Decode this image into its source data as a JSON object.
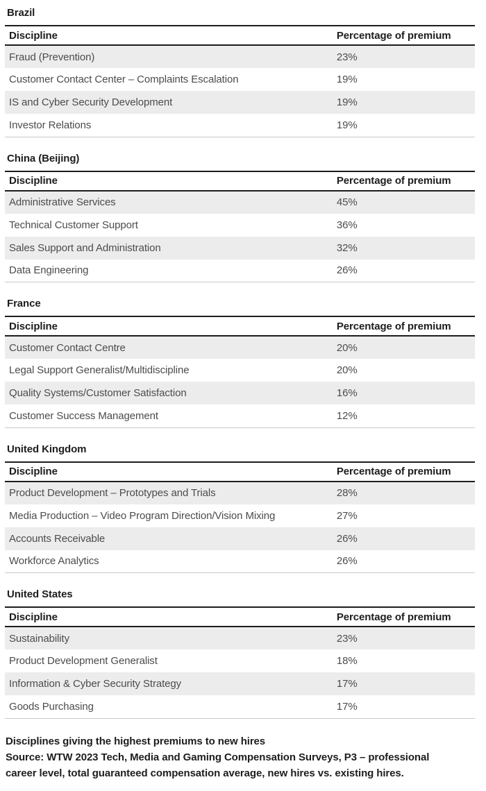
{
  "columns": {
    "discipline": "Discipline",
    "premium": "Percentage of premium"
  },
  "sections": [
    {
      "country": "Brazil",
      "rows": [
        {
          "discipline": "Fraud (Prevention)",
          "premium": "23%"
        },
        {
          "discipline": "Customer Contact Center – Complaints Escalation",
          "premium": "19%"
        },
        {
          "discipline": "IS and Cyber Security Development",
          "premium": "19%"
        },
        {
          "discipline": "Investor Relations",
          "premium": "19%"
        }
      ]
    },
    {
      "country": "China (Beijing)",
      "rows": [
        {
          "discipline": "Administrative Services",
          "premium": "45%"
        },
        {
          "discipline": "Technical Customer Support",
          "premium": "36%"
        },
        {
          "discipline": "Sales Support and Administration",
          "premium": "32%"
        },
        {
          "discipline": "Data Engineering",
          "premium": "26%"
        }
      ]
    },
    {
      "country": "France",
      "rows": [
        {
          "discipline": "Customer Contact Centre",
          "premium": "20%"
        },
        {
          "discipline": "Legal Support Generalist/Multidiscipline",
          "premium": "20%"
        },
        {
          "discipline": "Quality Systems/Customer Satisfaction",
          "premium": "16%"
        },
        {
          "discipline": "Customer Success Management",
          "premium": "12%"
        }
      ]
    },
    {
      "country": "United Kingdom",
      "rows": [
        {
          "discipline": "Product Development – Prototypes and Trials",
          "premium": "28%"
        },
        {
          "discipline": "Media Production – Video Program Direction/Vision Mixing",
          "premium": "27%"
        },
        {
          "discipline": "Accounts Receivable",
          "premium": "26%"
        },
        {
          "discipline": "Workforce Analytics",
          "premium": "26%"
        }
      ]
    },
    {
      "country": "United States",
      "rows": [
        {
          "discipline": "Sustainability",
          "premium": "23%"
        },
        {
          "discipline": "Product Development Generalist",
          "premium": "18%"
        },
        {
          "discipline": "Information & Cyber Security Strategy",
          "premium": "17%"
        },
        {
          "discipline": "Goods Purchasing",
          "premium": "17%"
        }
      ]
    }
  ],
  "footer": {
    "lines": [
      "Disciplines giving the highest premiums to new hires",
      "Source: WTW 2023 Tech, Media and Gaming Compensation Surveys, P3 – professional",
      "career level, total guaranteed compensation average, new hires vs. existing hires."
    ]
  },
  "colors": {
    "heading_text": "#1d1d1d",
    "body_text": "#4c4c4c",
    "row_stripe": "#ececec",
    "rule_dark": "#1c1c1c",
    "rule_light": "#c9c9c9",
    "background": "#ffffff"
  },
  "chart_data": [
    {
      "type": "table",
      "title": "Brazil",
      "columns": [
        "Discipline",
        "Percentage of premium"
      ],
      "categories": [
        "Fraud (Prevention)",
        "Customer Contact Center – Complaints Escalation",
        "IS and Cyber Security Development",
        "Investor Relations"
      ],
      "values": [
        23,
        19,
        19,
        19
      ],
      "unit": "%"
    },
    {
      "type": "table",
      "title": "China (Beijing)",
      "columns": [
        "Discipline",
        "Percentage of premium"
      ],
      "categories": [
        "Administrative Services",
        "Technical Customer Support",
        "Sales Support and Administration",
        "Data Engineering"
      ],
      "values": [
        45,
        36,
        32,
        26
      ],
      "unit": "%"
    },
    {
      "type": "table",
      "title": "France",
      "columns": [
        "Discipline",
        "Percentage of premium"
      ],
      "categories": [
        "Customer Contact Centre",
        "Legal Support Generalist/Multidiscipline",
        "Quality Systems/Customer Satisfaction",
        "Customer Success Management"
      ],
      "values": [
        20,
        20,
        16,
        12
      ],
      "unit": "%"
    },
    {
      "type": "table",
      "title": "United Kingdom",
      "columns": [
        "Discipline",
        "Percentage of premium"
      ],
      "categories": [
        "Product Development – Prototypes and Trials",
        "Media Production – Video Program Direction/Vision Mixing",
        "Accounts Receivable",
        "Workforce Analytics"
      ],
      "values": [
        28,
        27,
        26,
        26
      ],
      "unit": "%"
    },
    {
      "type": "table",
      "title": "United States",
      "columns": [
        "Discipline",
        "Percentage of premium"
      ],
      "categories": [
        "Sustainability",
        "Product Development Generalist",
        "Information & Cyber Security Strategy",
        "Goods Purchasing"
      ],
      "values": [
        23,
        18,
        17,
        17
      ],
      "unit": "%"
    }
  ]
}
